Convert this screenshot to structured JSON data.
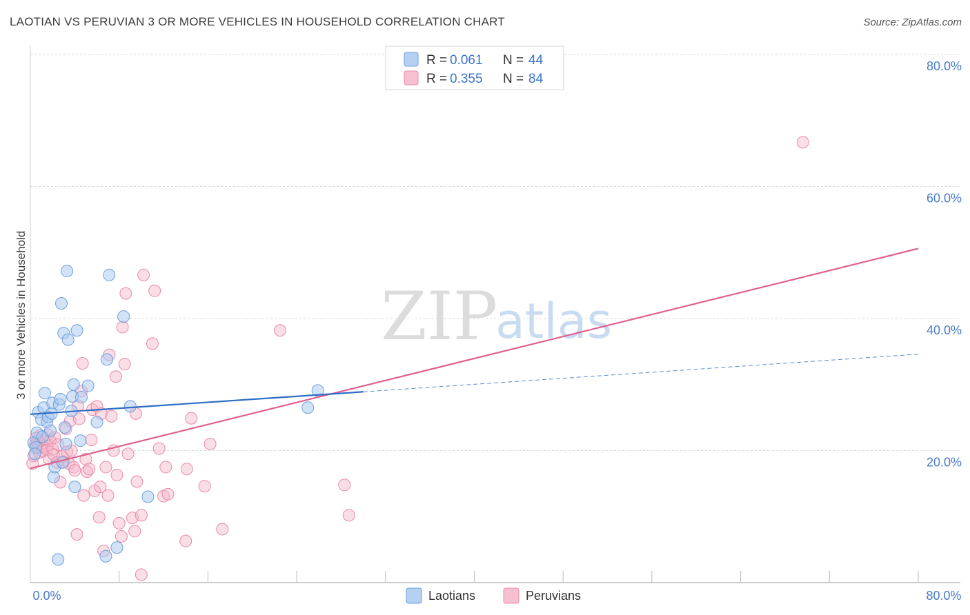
{
  "title": "LAOTIAN VS PERUVIAN 3 OR MORE VEHICLES IN HOUSEHOLD CORRELATION CHART",
  "source": "Source: ZipAtlas.com",
  "watermark": {
    "zip": "ZIP",
    "atlas": "atlas"
  },
  "legend": {
    "r_label": "R =",
    "n_label": "N =",
    "rows": [
      {
        "r": "0.061",
        "n": "44",
        "color": "#a8c8f0"
      },
      {
        "r": "0.355",
        "n": "84",
        "color": "#f5b5c8"
      }
    ]
  },
  "bottom_legend": [
    {
      "label": "Laotians",
      "color": "#a8c8f0"
    },
    {
      "label": "Peruvians",
      "color": "#f5b5c8"
    }
  ],
  "colors": {
    "laotian_fill": "#a8c8f0",
    "laotian_stroke": "#6f9fdc",
    "laotian_line": "#2f6cc4",
    "peruvian_fill": "#f5b5c8",
    "peruvian_stroke": "#e889a8",
    "peruvian_line": "#e0608e",
    "grid": "#d9d9d9",
    "tick": "#4a7cc9"
  },
  "chart_data": {
    "type": "scatter",
    "title": "LAOTIAN VS PERUVIAN 3 OR MORE VEHICLES IN HOUSEHOLD CORRELATION CHART",
    "xlabel": "",
    "ylabel": "3 or more Vehicles in Household",
    "xlim": [
      0,
      80
    ],
    "ylim": [
      0,
      80
    ],
    "x_ticks": [
      {
        "value": 0,
        "label": "0.0%"
      },
      {
        "value": 80,
        "label": "80.0%"
      }
    ],
    "y_ticks": [
      {
        "value": 20,
        "label": "20.0%"
      },
      {
        "value": 40,
        "label": "40.0%"
      },
      {
        "value": 60,
        "label": "60.0%"
      },
      {
        "value": 80,
        "label": "80.0%"
      }
    ],
    "x_minor_ticks": [
      8,
      16,
      24,
      32,
      40,
      48,
      56,
      64,
      72,
      80
    ],
    "series": [
      {
        "name": "Laotians",
        "r": 0.061,
        "n": 44,
        "trend": {
          "x0": 0,
          "y0": 25.5,
          "x1": 30,
          "y1": 28.9,
          "dash_to_x": 80,
          "dash_to_y": 34.6
        },
        "points": [
          [
            0.3,
            21.2
          ],
          [
            0.5,
            20.5
          ],
          [
            0.6,
            22.7
          ],
          [
            0.7,
            25.8
          ],
          [
            1.0,
            24.7
          ],
          [
            1.1,
            22.1
          ],
          [
            1.2,
            26.5
          ],
          [
            1.3,
            28.7
          ],
          [
            1.5,
            24.3
          ],
          [
            1.6,
            25.1
          ],
          [
            1.8,
            23.0
          ],
          [
            1.9,
            25.6
          ],
          [
            2.0,
            27.2
          ],
          [
            2.1,
            16.0
          ],
          [
            2.2,
            17.5
          ],
          [
            2.5,
            3.5
          ],
          [
            2.6,
            27.0
          ],
          [
            2.7,
            27.8
          ],
          [
            2.8,
            42.3
          ],
          [
            2.9,
            18.2
          ],
          [
            3.0,
            37.8
          ],
          [
            3.1,
            23.5
          ],
          [
            3.2,
            21.0
          ],
          [
            3.3,
            47.2
          ],
          [
            3.4,
            36.8
          ],
          [
            3.7,
            26.0
          ],
          [
            3.8,
            28.2
          ],
          [
            3.9,
            30.0
          ],
          [
            4.0,
            14.5
          ],
          [
            4.2,
            38.2
          ],
          [
            4.5,
            21.5
          ],
          [
            4.6,
            28.1
          ],
          [
            5.2,
            29.8
          ],
          [
            6.0,
            24.3
          ],
          [
            6.8,
            4.0
          ],
          [
            6.9,
            33.8
          ],
          [
            7.1,
            46.6
          ],
          [
            7.8,
            5.3
          ],
          [
            8.4,
            40.3
          ],
          [
            9.0,
            26.7
          ],
          [
            10.6,
            13.0
          ],
          [
            25.0,
            26.5
          ],
          [
            25.9,
            29.1
          ],
          [
            0.4,
            19.5
          ]
        ]
      },
      {
        "name": "Peruvians",
        "r": 0.355,
        "n": 84,
        "trend": {
          "x0": 0,
          "y0": 17.3,
          "x1": 80,
          "y1": 50.6
        },
        "points": [
          [
            0.2,
            18.0
          ],
          [
            0.3,
            19.2
          ],
          [
            0.4,
            20.8
          ],
          [
            0.5,
            21.9
          ],
          [
            0.6,
            21.3
          ],
          [
            0.7,
            20.4
          ],
          [
            0.8,
            19.7
          ],
          [
            0.9,
            22.3
          ],
          [
            1.0,
            21.0
          ],
          [
            1.1,
            19.9
          ],
          [
            1.2,
            20.6
          ],
          [
            1.3,
            21.8
          ],
          [
            1.5,
            20.1
          ],
          [
            1.6,
            22.4
          ],
          [
            1.7,
            18.7
          ],
          [
            1.8,
            21.5
          ],
          [
            2.0,
            20.2
          ],
          [
            2.1,
            19.4
          ],
          [
            2.2,
            22.0
          ],
          [
            2.4,
            18.2
          ],
          [
            2.5,
            20.9
          ],
          [
            2.7,
            15.2
          ],
          [
            2.9,
            19.1
          ],
          [
            3.0,
            18.3
          ],
          [
            3.2,
            23.3
          ],
          [
            3.3,
            19.8
          ],
          [
            3.5,
            18.0
          ],
          [
            3.6,
            24.5
          ],
          [
            3.7,
            20.0
          ],
          [
            3.9,
            17.5
          ],
          [
            4.0,
            17.0
          ],
          [
            4.2,
            7.3
          ],
          [
            4.3,
            26.8
          ],
          [
            4.4,
            24.8
          ],
          [
            4.6,
            29.0
          ],
          [
            4.7,
            33.2
          ],
          [
            4.8,
            13.2
          ],
          [
            5.0,
            18.7
          ],
          [
            5.1,
            16.8
          ],
          [
            5.3,
            17.2
          ],
          [
            5.5,
            21.6
          ],
          [
            5.6,
            26.2
          ],
          [
            5.8,
            13.9
          ],
          [
            6.0,
            26.7
          ],
          [
            6.2,
            9.9
          ],
          [
            6.3,
            14.5
          ],
          [
            6.4,
            25.6
          ],
          [
            6.6,
            4.8
          ],
          [
            6.8,
            17.5
          ],
          [
            7.0,
            13.2
          ],
          [
            7.1,
            34.5
          ],
          [
            7.3,
            25.2
          ],
          [
            7.5,
            20.0
          ],
          [
            7.7,
            31.2
          ],
          [
            7.8,
            16.3
          ],
          [
            8.0,
            9.0
          ],
          [
            8.2,
            7.0
          ],
          [
            8.3,
            38.7
          ],
          [
            8.5,
            33.1
          ],
          [
            8.6,
            43.8
          ],
          [
            8.8,
            19.5
          ],
          [
            9.5,
            25.6
          ],
          [
            9.2,
            9.8
          ],
          [
            9.4,
            7.8
          ],
          [
            9.6,
            15.3
          ],
          [
            10.0,
            10.2
          ],
          [
            10.2,
            46.6
          ],
          [
            11.0,
            36.2
          ],
          [
            11.2,
            44.2
          ],
          [
            11.6,
            20.3
          ],
          [
            12.0,
            13.1
          ],
          [
            12.2,
            17.5
          ],
          [
            12.4,
            13.4
          ],
          [
            14.0,
            6.3
          ],
          [
            14.1,
            17.2
          ],
          [
            14.5,
            24.9
          ],
          [
            15.7,
            14.6
          ],
          [
            16.2,
            21.0
          ],
          [
            17.3,
            8.1
          ],
          [
            22.5,
            38.2
          ],
          [
            28.3,
            14.8
          ],
          [
            28.7,
            10.2
          ],
          [
            69.6,
            66.7
          ],
          [
            10.0,
            1.2
          ]
        ]
      }
    ]
  }
}
